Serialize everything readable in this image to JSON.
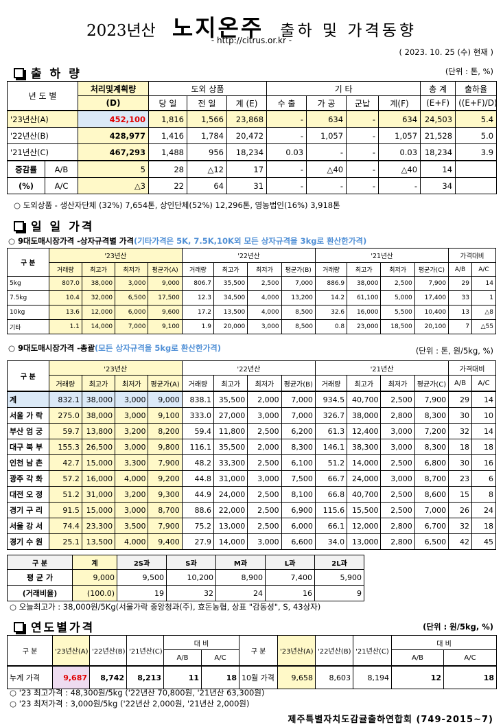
{
  "header": {
    "year": "2023년산",
    "main": "노지온주",
    "rest": "출하 및 가격동향",
    "site": "- http://citrus.or.kr -",
    "date": "( 2023.  10.  25 (수) 현재 )"
  },
  "shipment": {
    "title": "출 하 량",
    "unit": "(단위 : 톤, %)",
    "h_year": "년 도 별",
    "h_plan": "처리및계획량",
    "h_plan_sub": "(D)",
    "h_out": "도외 상품",
    "h_etc": "기          타",
    "h_total": "총  계",
    "h_rate": "출하율",
    "h_sub": [
      "당 일",
      "전 일",
      "계 (E)",
      "수 출",
      "가 공",
      "군납",
      "계(F)",
      "(E+F)",
      "((E+F)/D)"
    ],
    "rows": [
      {
        "label": "'23년산(A)",
        "cells": [
          "452,100",
          "1,816",
          "1,566",
          "23,868",
          "-",
          "634",
          "-",
          "634",
          "24,503",
          "5.4"
        ]
      },
      {
        "label": "'22년산(B)",
        "cells": [
          "428,977",
          "1,416",
          "1,784",
          "20,472",
          "-",
          "1,057",
          "-",
          "1,057",
          "21,528",
          "5.0"
        ]
      },
      {
        "label": "'21년산(C)",
        "cells": [
          "467,293",
          "1,488",
          "956",
          "18,234",
          "0.03",
          "-",
          "-",
          "0.03",
          "18,234",
          "3.9"
        ]
      }
    ],
    "diff_label1": "증감률",
    "diff_label2": "(%)",
    "diff_rows": [
      {
        "label": "A/B",
        "cells": [
          "5",
          "28",
          "△12",
          "17",
          "-",
          "△40",
          "-",
          "△40",
          "14",
          ""
        ]
      },
      {
        "label": "A/C",
        "cells": [
          "△3",
          "22",
          "64",
          "31",
          "-",
          "-",
          "-",
          "-",
          "34",
          ""
        ]
      }
    ],
    "note": "도외상품 - 생산자단체 (32%) 7,654톤, 상인단체(52%) 12,296톤, 영농법인(16%) 3,918톤"
  },
  "daily": {
    "title": "일 일 가격",
    "sub1_a": "9대도매시장가격 -상자규격별 가격",
    "sub1_b": "(기타가격은 5K, 7.5K,10K외 모든 상자규격을 3kg로 환산한가격)",
    "gubun": "구  분",
    "y23": "'23년산",
    "y22": "'22년산",
    "y21": "'21년산",
    "cmp": "가격대비",
    "cols_a": [
      "거래량",
      "최고가",
      "최저가",
      "평균가(A)"
    ],
    "cols_b": [
      "거래량",
      "최고가",
      "최저가",
      "평균가(B)"
    ],
    "cols_c": [
      "거래량",
      "최고가",
      "최저가",
      "평균가(C)"
    ],
    "cmp_cols": [
      "A/B",
      "A/C"
    ],
    "box_rows": [
      {
        "label": "5kg",
        "cells": [
          "807.0",
          "38,000",
          "3,000",
          "9,000",
          "806.7",
          "35,500",
          "2,500",
          "7,000",
          "886.9",
          "38,000",
          "2,500",
          "7,900",
          "29",
          "14"
        ]
      },
      {
        "label": "7.5kg",
        "cells": [
          "10.4",
          "32,000",
          "6,500",
          "17,500",
          "12.3",
          "34,500",
          "4,000",
          "13,200",
          "14.2",
          "61,100",
          "5,000",
          "17,400",
          "33",
          "1"
        ]
      },
      {
        "label": "10kg",
        "cells": [
          "13.6",
          "12,000",
          "6,000",
          "9,600",
          "17.2",
          "13,500",
          "4,000",
          "8,500",
          "32.6",
          "16,000",
          "5,500",
          "10,400",
          "13",
          "△8"
        ]
      },
      {
        "label": "기타",
        "cells": [
          "1.1",
          "14,000",
          "7,000",
          "9,100",
          "1.9",
          "20,000",
          "3,000",
          "8,500",
          "0.8",
          "23,000",
          "18,500",
          "20,100",
          "7",
          "△55"
        ]
      }
    ],
    "sub2_a": "9대도매시장가격 -총괄",
    "sub2_b": "(모든 상자규격을 5kg로 환산한가격)",
    "unit2": "(단위 : 톤, 원/5kg, %)",
    "market_rows": [
      {
        "label": "계",
        "cells": [
          "832.1",
          "38,000",
          "3,000",
          "9,000",
          "838.1",
          "35,500",
          "2,000",
          "7,000",
          "934.5",
          "40,700",
          "2,500",
          "7,900",
          "29",
          "14"
        ]
      },
      {
        "label": "서울 가 락",
        "cells": [
          "275.0",
          "38,000",
          "3,000",
          "9,100",
          "333.0",
          "27,000",
          "3,000",
          "7,000",
          "326.7",
          "38,000",
          "2,800",
          "8,300",
          "30",
          "10"
        ]
      },
      {
        "label": "부산 엄 궁",
        "cells": [
          "59.7",
          "13,800",
          "3,200",
          "8,200",
          "59.4",
          "11,800",
          "2,500",
          "6,200",
          "61.3",
          "12,400",
          "3,000",
          "7,200",
          "32",
          "14"
        ]
      },
      {
        "label": "대구 북 부",
        "cells": [
          "155.3",
          "26,500",
          "3,000",
          "9,800",
          "116.1",
          "35,500",
          "2,000",
          "8,300",
          "146.1",
          "38,300",
          "3,000",
          "8,300",
          "18",
          "18"
        ]
      },
      {
        "label": "인천 남 촌",
        "cells": [
          "42.7",
          "15,000",
          "3,300",
          "7,900",
          "48.2",
          "33,300",
          "2,500",
          "6,100",
          "51.2",
          "14,000",
          "2,500",
          "6,800",
          "30",
          "16"
        ]
      },
      {
        "label": "광주 각 화",
        "cells": [
          "57.2",
          "16,000",
          "4,000",
          "9,200",
          "44.8",
          "31,000",
          "3,000",
          "7,500",
          "66.7",
          "24,000",
          "3,000",
          "8,700",
          "23",
          "6"
        ]
      },
      {
        "label": "대전 오 정",
        "cells": [
          "51.2",
          "31,000",
          "3,200",
          "9,300",
          "44.9",
          "24,000",
          "2,500",
          "8,100",
          "66.8",
          "40,700",
          "2,500",
          "8,600",
          "15",
          "8"
        ]
      },
      {
        "label": "경기 구 리",
        "cells": [
          "91.5",
          "15,000",
          "3,000",
          "8,700",
          "88.6",
          "22,000",
          "2,500",
          "6,900",
          "115.6",
          "15,500",
          "2,500",
          "7,000",
          "26",
          "24"
        ]
      },
      {
        "label": "서울 강 서",
        "cells": [
          "74.4",
          "23,300",
          "3,500",
          "7,900",
          "75.2",
          "13,000",
          "2,500",
          "6,000",
          "66.1",
          "12,000",
          "2,800",
          "6,700",
          "32",
          "18"
        ]
      },
      {
        "label": "경기 수 원",
        "cells": [
          "25.1",
          "13,500",
          "4,000",
          "9,400",
          "27.9",
          "14,000",
          "3,000",
          "6,600",
          "34.0",
          "13,000",
          "2,800",
          "6,500",
          "42",
          "45"
        ]
      }
    ],
    "size": {
      "head": [
        "구  분",
        "계",
        "2S과",
        "S과",
        "M과",
        "L과",
        "2L과"
      ],
      "row1_label": "평 균 가",
      "row1": [
        "9,000",
        "9,500",
        "10,200",
        "8,900",
        "7,400",
        "5,900"
      ],
      "row2_label": "(거래비율)",
      "row2": [
        "(100.0)",
        "19",
        "32",
        "24",
        "16",
        "9"
      ]
    },
    "note": "오늘최고가 : 38,000원/5Kg(서울가락 중앙청과(주), 효돈농협,  상표 \"감동성\", S, 43상자)"
  },
  "yearly": {
    "title": "연도별가격",
    "unit": "(단위 : 원/5kg, %)",
    "gubun": "구  분",
    "cols": [
      "'23년산(A)",
      "'22년산(B)",
      "'21년산(C)"
    ],
    "cmp": "대  비",
    "cmp_cols": [
      "A/B",
      "A/C"
    ],
    "left": {
      "label": "누계 가격",
      "cells": [
        "9,687",
        "8,742",
        "8,213",
        "11",
        "18"
      ]
    },
    "right": {
      "label": "10월 가격",
      "cells": [
        "9,658",
        "8,603",
        "8,194",
        "12",
        "18"
      ]
    },
    "note1": "'23 최고가격 : 48,300원/5kg ('22년산 70,800원, '21년산 63,300원)",
    "note2": "'23 최저가격 :   3,000원/5kg ('22년산  2,000원, '21년산  2,000원)"
  },
  "footer": "제주특별자치도감귤출하연합회 (749-2015~7)"
}
